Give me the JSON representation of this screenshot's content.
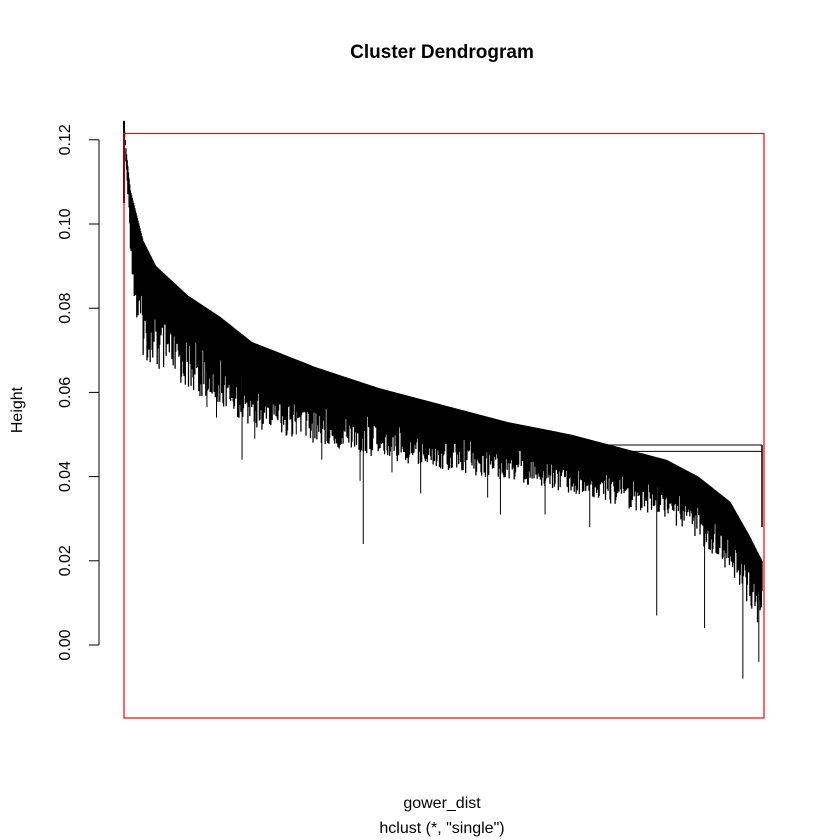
{
  "chart_data": {
    "type": "dendrogram",
    "title": "Cluster Dendrogram",
    "xlabel": "gower_dist",
    "sublabel": "hclust (*, \"single\")",
    "ylabel": "Height",
    "y_ticks": [
      "0.00",
      "0.02",
      "0.04",
      "0.06",
      "0.08",
      "0.10",
      "0.12"
    ],
    "ylim": [
      -0.017,
      0.13
    ],
    "method": "single",
    "n_leaves_approx": 1000,
    "root_height": 0.1245,
    "highlight_cut_height": 0.1215,
    "merge_height_profile": [
      [
        0.0,
        0.124
      ],
      [
        0.003,
        0.118
      ],
      [
        0.01,
        0.108
      ],
      [
        0.03,
        0.096
      ],
      [
        0.05,
        0.09
      ],
      [
        0.1,
        0.083
      ],
      [
        0.15,
        0.078
      ],
      [
        0.2,
        0.072
      ],
      [
        0.3,
        0.066
      ],
      [
        0.4,
        0.061
      ],
      [
        0.5,
        0.057
      ],
      [
        0.6,
        0.053
      ],
      [
        0.7,
        0.05
      ],
      [
        0.8,
        0.046
      ],
      [
        0.85,
        0.044
      ],
      [
        0.9,
        0.04
      ],
      [
        0.95,
        0.034
      ],
      [
        0.98,
        0.026
      ],
      [
        1.0,
        0.02
      ]
    ],
    "bundle_thickness_profile": [
      [
        0.0,
        0.0
      ],
      [
        0.02,
        0.02
      ],
      [
        0.1,
        0.016
      ],
      [
        0.3,
        0.013
      ],
      [
        0.6,
        0.01
      ],
      [
        0.85,
        0.01
      ],
      [
        0.95,
        0.012
      ],
      [
        1.0,
        0.012
      ]
    ],
    "long_leaves": [
      [
        0.13,
        0.0565
      ],
      [
        0.145,
        0.054
      ],
      [
        0.185,
        0.044
      ],
      [
        0.205,
        0.049
      ],
      [
        0.27,
        0.05
      ],
      [
        0.31,
        0.044
      ],
      [
        0.37,
        0.039
      ],
      [
        0.375,
        0.024
      ],
      [
        0.42,
        0.041
      ],
      [
        0.465,
        0.036
      ],
      [
        0.57,
        0.035
      ],
      [
        0.59,
        0.031
      ],
      [
        0.66,
        0.031
      ],
      [
        0.73,
        0.028
      ],
      [
        0.835,
        0.007
      ],
      [
        0.91,
        0.004
      ],
      [
        0.97,
        -0.008
      ],
      [
        0.995,
        -0.004
      ]
    ],
    "late_merge_bracket": {
      "x_from": 0.73,
      "heights": [
        0.0475,
        0.046
      ]
    },
    "colors": {
      "tree": "#000000",
      "highlight": "#ff0000",
      "axis": "#000000"
    }
  }
}
